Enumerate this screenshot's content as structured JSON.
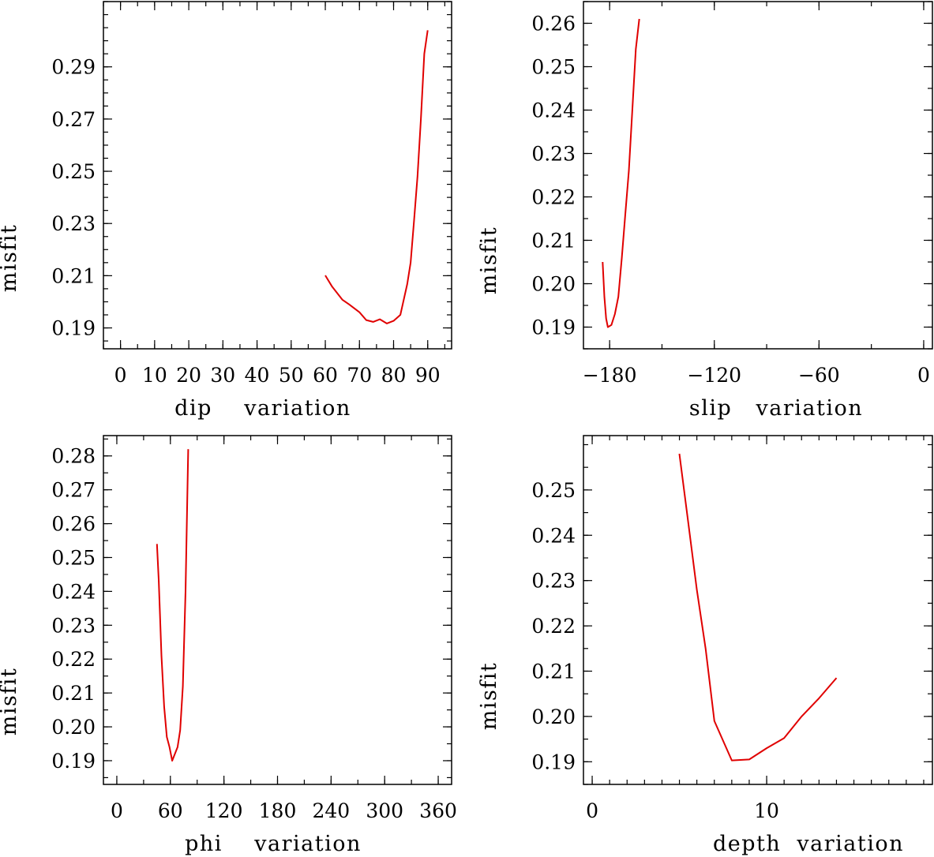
{
  "chart_data": [
    {
      "type": "line",
      "xlabel": "dip    variation",
      "ylabel": "misfit",
      "xlim": [
        -5,
        97
      ],
      "ylim": [
        0.182,
        0.315
      ],
      "xticks": [
        0,
        10,
        20,
        30,
        40,
        50,
        60,
        70,
        80,
        90
      ],
      "xtick_labels": [
        "0",
        "10",
        "20",
        "30",
        "40",
        "50",
        "60",
        "70",
        "80",
        "90"
      ],
      "x_minor_step": 5,
      "yticks": [
        0.19,
        0.21,
        0.23,
        0.25,
        0.27,
        0.29
      ],
      "ytick_labels": [
        "0.19",
        "0.21",
        "0.23",
        "0.25",
        "0.27",
        "0.29"
      ],
      "y_minor_step": 0.005,
      "grid": false,
      "series": [
        {
          "color": "#e00000",
          "x": [
            60,
            62,
            65,
            67,
            70,
            72,
            74,
            76,
            78,
            80,
            82,
            84,
            85,
            86,
            87,
            88,
            89,
            90
          ],
          "y": [
            0.2101,
            0.2058,
            0.2008,
            0.199,
            0.196,
            0.193,
            0.1923,
            0.1933,
            0.1917,
            0.1927,
            0.195,
            0.2068,
            0.215,
            0.231,
            0.248,
            0.27,
            0.295,
            0.304
          ]
        }
      ]
    },
    {
      "type": "line",
      "xlabel": "slip   variation",
      "ylabel": "misfit",
      "xlim": [
        -195,
        5
      ],
      "ylim": [
        0.185,
        0.265
      ],
      "xticks": [
        -180,
        -120,
        -60,
        0
      ],
      "xtick_labels": [
        "−180",
        "−120",
        "−60",
        "0"
      ],
      "x_minor_step": 30,
      "yticks": [
        0.19,
        0.2,
        0.21,
        0.22,
        0.23,
        0.24,
        0.25,
        0.26
      ],
      "ytick_labels": [
        "0.19",
        "0.20",
        "0.21",
        "0.22",
        "0.23",
        "0.24",
        "0.25",
        "0.26"
      ],
      "y_minor_step": 0.005,
      "grid": false,
      "series": [
        {
          "color": "#e00000",
          "x": [
            -184,
            -183,
            -182,
            -181,
            -179,
            -177,
            -175,
            -173,
            -171,
            -169,
            -167,
            -165,
            -163
          ],
          "y": [
            0.205,
            0.197,
            0.192,
            0.19,
            0.1905,
            0.193,
            0.197,
            0.206,
            0.216,
            0.226,
            0.24,
            0.254,
            0.261
          ]
        }
      ]
    },
    {
      "type": "line",
      "xlabel": "phi    variation",
      "ylabel": "misfit",
      "xlim": [
        -15,
        375
      ],
      "ylim": [
        0.183,
        0.286
      ],
      "xticks": [
        0,
        60,
        120,
        180,
        240,
        300,
        360
      ],
      "xtick_labels": [
        "0",
        "60",
        "120",
        "180",
        "240",
        "300",
        "360"
      ],
      "x_minor_step": 30,
      "yticks": [
        0.19,
        0.2,
        0.21,
        0.22,
        0.23,
        0.24,
        0.25,
        0.26,
        0.27,
        0.28
      ],
      "ytick_labels": [
        "0.19",
        "0.20",
        "0.21",
        "0.22",
        "0.23",
        "0.24",
        "0.25",
        "0.26",
        "0.27",
        "0.28"
      ],
      "y_minor_step": 0.005,
      "grid": false,
      "series": [
        {
          "color": "#e00000",
          "x": [
            45,
            47,
            50,
            53,
            56,
            59,
            62,
            65,
            68,
            71,
            74,
            77,
            80
          ],
          "y": [
            0.254,
            0.243,
            0.221,
            0.206,
            0.197,
            0.194,
            0.19,
            0.192,
            0.194,
            0.199,
            0.212,
            0.24,
            0.282
          ]
        }
      ]
    },
    {
      "type": "line",
      "xlabel": "depth  variation",
      "ylabel": "misfit",
      "xlim": [
        -0.5,
        19.5
      ],
      "ylim": [
        0.185,
        0.262
      ],
      "xticks": [
        0,
        10
      ],
      "xtick_labels": [
        "0",
        "10"
      ],
      "x_minor_step": 1,
      "yticks": [
        0.19,
        0.2,
        0.21,
        0.22,
        0.23,
        0.24,
        0.25
      ],
      "ytick_labels": [
        "0.19",
        "0.20",
        "0.21",
        "0.22",
        "0.23",
        "0.24",
        "0.25"
      ],
      "y_minor_step": 0.005,
      "grid": false,
      "series": [
        {
          "color": "#e00000",
          "x": [
            5,
            5.5,
            6,
            6.5,
            7,
            8,
            9,
            10,
            11,
            12,
            13,
            14
          ],
          "y": [
            0.258,
            0.243,
            0.228,
            0.215,
            0.199,
            0.1903,
            0.1905,
            0.193,
            0.1952,
            0.2,
            0.204,
            0.2085
          ]
        }
      ]
    }
  ]
}
